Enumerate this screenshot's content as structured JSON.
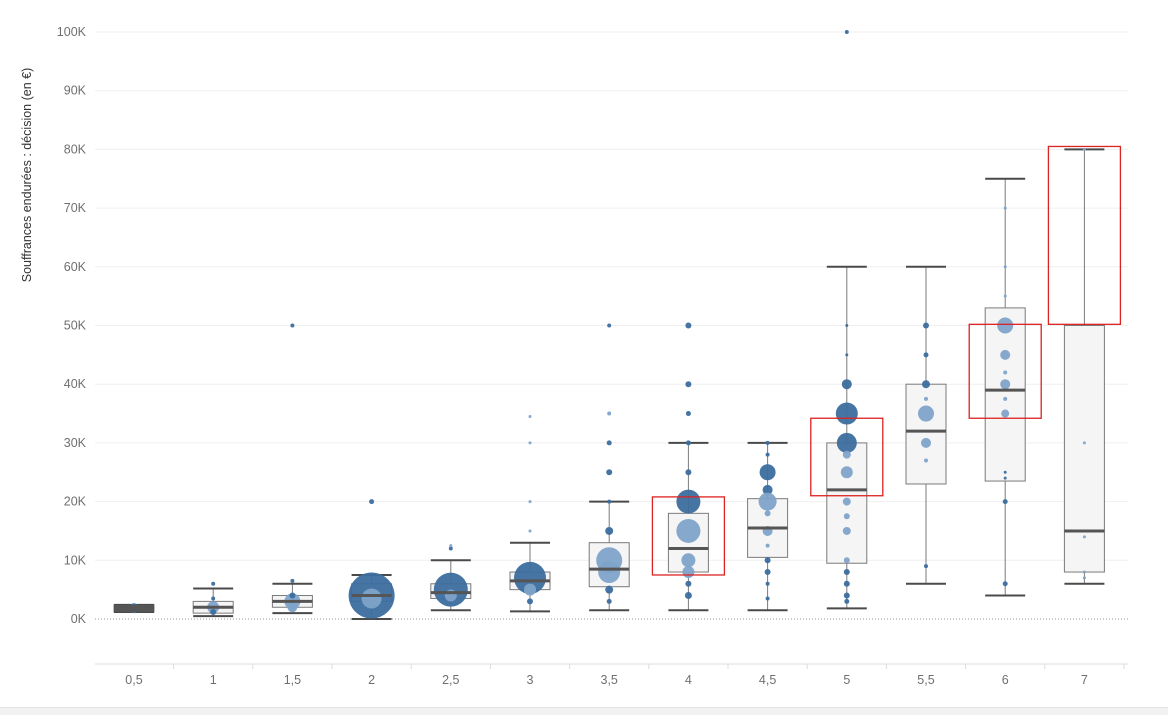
{
  "chart_data": {
    "type": "boxplot",
    "title": "",
    "xlabel": "",
    "ylabel": "Souffrances endurées : décision (en €)",
    "ylim": [
      -8000,
      105000
    ],
    "y_ticks": [
      0,
      10000,
      20000,
      30000,
      40000,
      50000,
      60000,
      70000,
      80000,
      90000,
      100000
    ],
    "y_tick_labels": [
      "0K",
      "10K",
      "20K",
      "30K",
      "40K",
      "50K",
      "60K",
      "70K",
      "80K",
      "90K",
      "100K"
    ],
    "categories": [
      "0,5",
      "1",
      "1,5",
      "2",
      "2,5",
      "3",
      "3,5",
      "4",
      "4,5",
      "5",
      "5,5",
      "6",
      "7"
    ],
    "boxes": [
      {
        "q1": 1200,
        "median": 1800,
        "q3": 2400,
        "whisker_low": 1200,
        "whisker_high": 2400
      },
      {
        "q1": 1000,
        "median": 2000,
        "q3": 3000,
        "whisker_low": 500,
        "whisker_high": 5200
      },
      {
        "q1": 2000,
        "median": 3000,
        "q3": 4000,
        "whisker_low": 1000,
        "whisker_high": 6000
      },
      {
        "q1": 3000,
        "median": 4000,
        "q3": 6000,
        "whisker_low": 0,
        "whisker_high": 7500
      },
      {
        "q1": 3500,
        "median": 4500,
        "q3": 6000,
        "whisker_low": 1500,
        "whisker_high": 10000
      },
      {
        "q1": 5000,
        "median": 6500,
        "q3": 8000,
        "whisker_low": 1300,
        "whisker_high": 13000
      },
      {
        "q1": 5500,
        "median": 8500,
        "q3": 13000,
        "whisker_low": 1500,
        "whisker_high": 20000
      },
      {
        "q1": 8000,
        "median": 12000,
        "q3": 18000,
        "whisker_low": 1500,
        "whisker_high": 30000
      },
      {
        "q1": 10500,
        "median": 15500,
        "q3": 20500,
        "whisker_low": 1500,
        "whisker_high": 30000
      },
      {
        "q1": 9500,
        "median": 22000,
        "q3": 30000,
        "whisker_low": 1800,
        "whisker_high": 60000
      },
      {
        "q1": 23000,
        "median": 32000,
        "q3": 40000,
        "whisker_low": 6000,
        "whisker_high": 60000
      },
      {
        "q1": 23500,
        "median": 39000,
        "q3": 53000,
        "whisker_low": 4000,
        "whisker_high": 75000
      },
      {
        "q1": 8000,
        "median": 15000,
        "q3": 50000,
        "whisker_low": 6000,
        "whisker_high": 80000
      }
    ],
    "points": [
      {
        "cat": 0,
        "y": 2000,
        "r": 4,
        "shade": "dark"
      },
      {
        "cat": 0,
        "y": 1500,
        "r": 3,
        "shade": "dark"
      },
      {
        "cat": 1,
        "y": 2000,
        "r": 6,
        "shade": "light"
      },
      {
        "cat": 1,
        "y": 1200,
        "r": 3,
        "shade": "dark"
      },
      {
        "cat": 1,
        "y": 3500,
        "r": 2,
        "shade": "dark"
      },
      {
        "cat": 1,
        "y": 6000,
        "r": 2,
        "shade": "dark"
      },
      {
        "cat": 2,
        "y": 50000,
        "r": 2,
        "shade": "dark"
      },
      {
        "cat": 2,
        "y": 3000,
        "r": 8,
        "shade": "light"
      },
      {
        "cat": 2,
        "y": 2000,
        "r": 5,
        "shade": "light"
      },
      {
        "cat": 2,
        "y": 4000,
        "r": 3,
        "shade": "dark"
      },
      {
        "cat": 2,
        "y": 6500,
        "r": 2,
        "shade": "dark"
      },
      {
        "cat": 3,
        "y": 20000,
        "r": 2.5,
        "shade": "dark"
      },
      {
        "cat": 3,
        "y": 4000,
        "r": 23,
        "shade": "dark"
      },
      {
        "cat": 3,
        "y": 3500,
        "r": 10,
        "shade": "light"
      },
      {
        "cat": 4,
        "y": 5000,
        "r": 17,
        "shade": "dark"
      },
      {
        "cat": 4,
        "y": 12000,
        "r": 2,
        "shade": "dark"
      },
      {
        "cat": 4,
        "y": 12500,
        "r": 1.5,
        "shade": "light"
      },
      {
        "cat": 4,
        "y": 4000,
        "r": 6,
        "shade": "light"
      },
      {
        "cat": 5,
        "y": 34500,
        "r": 1.5,
        "shade": "light"
      },
      {
        "cat": 5,
        "y": 30000,
        "r": 1.5,
        "shade": "light"
      },
      {
        "cat": 5,
        "y": 20000,
        "r": 1.5,
        "shade": "light"
      },
      {
        "cat": 5,
        "y": 15000,
        "r": 1.5,
        "shade": "light"
      },
      {
        "cat": 5,
        "y": 7000,
        "r": 16,
        "shade": "dark"
      },
      {
        "cat": 5,
        "y": 5000,
        "r": 6,
        "shade": "light"
      },
      {
        "cat": 5,
        "y": 3000,
        "r": 3,
        "shade": "dark"
      },
      {
        "cat": 6,
        "y": 50000,
        "r": 2,
        "shade": "dark"
      },
      {
        "cat": 6,
        "y": 35000,
        "r": 2,
        "shade": "light"
      },
      {
        "cat": 6,
        "y": 30000,
        "r": 2.5,
        "shade": "dark"
      },
      {
        "cat": 6,
        "y": 25000,
        "r": 3,
        "shade": "dark"
      },
      {
        "cat": 6,
        "y": 20000,
        "r": 2,
        "shade": "dark"
      },
      {
        "cat": 6,
        "y": 15000,
        "r": 4,
        "shade": "dark"
      },
      {
        "cat": 6,
        "y": 10000,
        "r": 13,
        "shade": "light"
      },
      {
        "cat": 6,
        "y": 8000,
        "r": 11,
        "shade": "light"
      },
      {
        "cat": 6,
        "y": 5000,
        "r": 4,
        "shade": "dark"
      },
      {
        "cat": 6,
        "y": 3000,
        "r": 2.5,
        "shade": "dark"
      },
      {
        "cat": 7,
        "y": 50000,
        "r": 3,
        "shade": "dark"
      },
      {
        "cat": 7,
        "y": 40000,
        "r": 3,
        "shade": "dark"
      },
      {
        "cat": 7,
        "y": 35000,
        "r": 2.5,
        "shade": "dark"
      },
      {
        "cat": 7,
        "y": 30000,
        "r": 2.5,
        "shade": "dark"
      },
      {
        "cat": 7,
        "y": 25000,
        "r": 3,
        "shade": "dark"
      },
      {
        "cat": 7,
        "y": 20000,
        "r": 12,
        "shade": "dark"
      },
      {
        "cat": 7,
        "y": 15000,
        "r": 12,
        "shade": "light"
      },
      {
        "cat": 7,
        "y": 10000,
        "r": 7,
        "shade": "light"
      },
      {
        "cat": 7,
        "y": 8000,
        "r": 6,
        "shade": "light"
      },
      {
        "cat": 7,
        "y": 6000,
        "r": 3,
        "shade": "dark"
      },
      {
        "cat": 7,
        "y": 4000,
        "r": 3.5,
        "shade": "dark"
      },
      {
        "cat": 8,
        "y": 30000,
        "r": 2,
        "shade": "dark"
      },
      {
        "cat": 8,
        "y": 28000,
        "r": 2,
        "shade": "dark"
      },
      {
        "cat": 8,
        "y": 25000,
        "r": 8,
        "shade": "dark"
      },
      {
        "cat": 8,
        "y": 22000,
        "r": 5,
        "shade": "dark"
      },
      {
        "cat": 8,
        "y": 20000,
        "r": 9,
        "shade": "light"
      },
      {
        "cat": 8,
        "y": 18000,
        "r": 3,
        "shade": "light"
      },
      {
        "cat": 8,
        "y": 15000,
        "r": 5,
        "shade": "light"
      },
      {
        "cat": 8,
        "y": 12500,
        "r": 2,
        "shade": "light"
      },
      {
        "cat": 8,
        "y": 10000,
        "r": 3,
        "shade": "dark"
      },
      {
        "cat": 8,
        "y": 8000,
        "r": 3,
        "shade": "dark"
      },
      {
        "cat": 8,
        "y": 6000,
        "r": 2,
        "shade": "dark"
      },
      {
        "cat": 8,
        "y": 3500,
        "r": 2,
        "shade": "dark"
      },
      {
        "cat": 9,
        "y": 100000,
        "r": 2,
        "shade": "dark"
      },
      {
        "cat": 9,
        "y": 50000,
        "r": 1.5,
        "shade": "dark"
      },
      {
        "cat": 9,
        "y": 45000,
        "r": 1.5,
        "shade": "dark"
      },
      {
        "cat": 9,
        "y": 40000,
        "r": 5,
        "shade": "dark"
      },
      {
        "cat": 9,
        "y": 35000,
        "r": 11,
        "shade": "dark"
      },
      {
        "cat": 9,
        "y": 30000,
        "r": 10,
        "shade": "dark"
      },
      {
        "cat": 9,
        "y": 28000,
        "r": 4,
        "shade": "light"
      },
      {
        "cat": 9,
        "y": 25000,
        "r": 6,
        "shade": "light"
      },
      {
        "cat": 9,
        "y": 20000,
        "r": 4,
        "shade": "light"
      },
      {
        "cat": 9,
        "y": 17500,
        "r": 3,
        "shade": "light"
      },
      {
        "cat": 9,
        "y": 15000,
        "r": 4,
        "shade": "light"
      },
      {
        "cat": 9,
        "y": 10000,
        "r": 3,
        "shade": "light"
      },
      {
        "cat": 9,
        "y": 8000,
        "r": 3,
        "shade": "dark"
      },
      {
        "cat": 9,
        "y": 6000,
        "r": 3,
        "shade": "dark"
      },
      {
        "cat": 9,
        "y": 4000,
        "r": 3,
        "shade": "dark"
      },
      {
        "cat": 9,
        "y": 3000,
        "r": 2.5,
        "shade": "dark"
      },
      {
        "cat": 10,
        "y": 50000,
        "r": 3,
        "shade": "dark"
      },
      {
        "cat": 10,
        "y": 45000,
        "r": 2.5,
        "shade": "dark"
      },
      {
        "cat": 10,
        "y": 40000,
        "r": 4,
        "shade": "dark"
      },
      {
        "cat": 10,
        "y": 37500,
        "r": 2,
        "shade": "light"
      },
      {
        "cat": 10,
        "y": 35000,
        "r": 8,
        "shade": "light"
      },
      {
        "cat": 10,
        "y": 30000,
        "r": 5,
        "shade": "light"
      },
      {
        "cat": 10,
        "y": 27000,
        "r": 2,
        "shade": "light"
      },
      {
        "cat": 10,
        "y": 9000,
        "r": 2,
        "shade": "dark"
      },
      {
        "cat": 11,
        "y": 70000,
        "r": 1.5,
        "shade": "light"
      },
      {
        "cat": 11,
        "y": 60000,
        "r": 1.5,
        "shade": "light"
      },
      {
        "cat": 11,
        "y": 55000,
        "r": 1.5,
        "shade": "light"
      },
      {
        "cat": 11,
        "y": 50000,
        "r": 8,
        "shade": "light"
      },
      {
        "cat": 11,
        "y": 45000,
        "r": 5,
        "shade": "light"
      },
      {
        "cat": 11,
        "y": 42000,
        "r": 2,
        "shade": "light"
      },
      {
        "cat": 11,
        "y": 40000,
        "r": 5,
        "shade": "light"
      },
      {
        "cat": 11,
        "y": 37500,
        "r": 2,
        "shade": "light"
      },
      {
        "cat": 11,
        "y": 35000,
        "r": 4,
        "shade": "light"
      },
      {
        "cat": 11,
        "y": 25000,
        "r": 1.5,
        "shade": "dark"
      },
      {
        "cat": 11,
        "y": 24000,
        "r": 1.5,
        "shade": "dark"
      },
      {
        "cat": 11,
        "y": 20000,
        "r": 2.5,
        "shade": "dark"
      },
      {
        "cat": 11,
        "y": 6000,
        "r": 2.5,
        "shade": "dark"
      },
      {
        "cat": 12,
        "y": 80000,
        "r": 1.5,
        "shade": "light"
      },
      {
        "cat": 12,
        "y": 30000,
        "r": 1.5,
        "shade": "light"
      },
      {
        "cat": 12,
        "y": 14000,
        "r": 1.5,
        "shade": "light"
      },
      {
        "cat": 12,
        "y": 8000,
        "r": 1.5,
        "shade": "light"
      },
      {
        "cat": 12,
        "y": 7000,
        "r": 1.5,
        "shade": "light"
      }
    ],
    "highlights": [
      {
        "cat": 7,
        "y_low": 7500,
        "y_high": 20800
      },
      {
        "cat": 9,
        "y_low": 21000,
        "y_high": 34200
      },
      {
        "cat": 11,
        "y_low": 34200,
        "y_high": 50200
      },
      {
        "cat": 12,
        "y_low": 50200,
        "y_high": 80500
      }
    ],
    "colors": {
      "dark": "#3c6e9f",
      "light": "#7ea3c9",
      "box_stroke": "#7a7a7a",
      "box_fill": "#f5f5f5",
      "median": "#555555",
      "highlight": "#dd2222",
      "grid": "#efefef"
    }
  }
}
